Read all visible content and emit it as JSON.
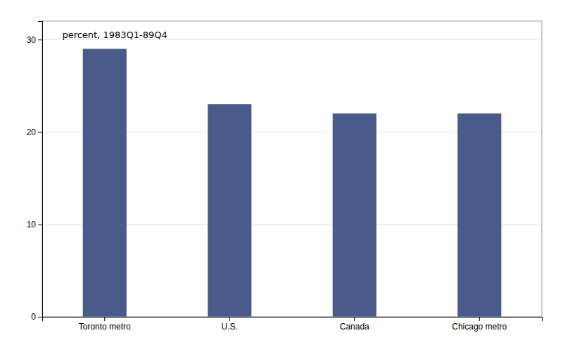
{
  "chart_data": {
    "type": "bar",
    "annotation": "percent, 1983Q1-89Q4",
    "categories": [
      "Toronto metro",
      "U.S.",
      "Canada",
      "Chicago metro"
    ],
    "values": [
      29.0,
      23.0,
      22.0,
      22.0
    ],
    "color": "#4A5A8A",
    "ylim": [
      0,
      32
    ],
    "yticks": [
      0,
      10,
      20,
      30
    ],
    "grid": true
  }
}
